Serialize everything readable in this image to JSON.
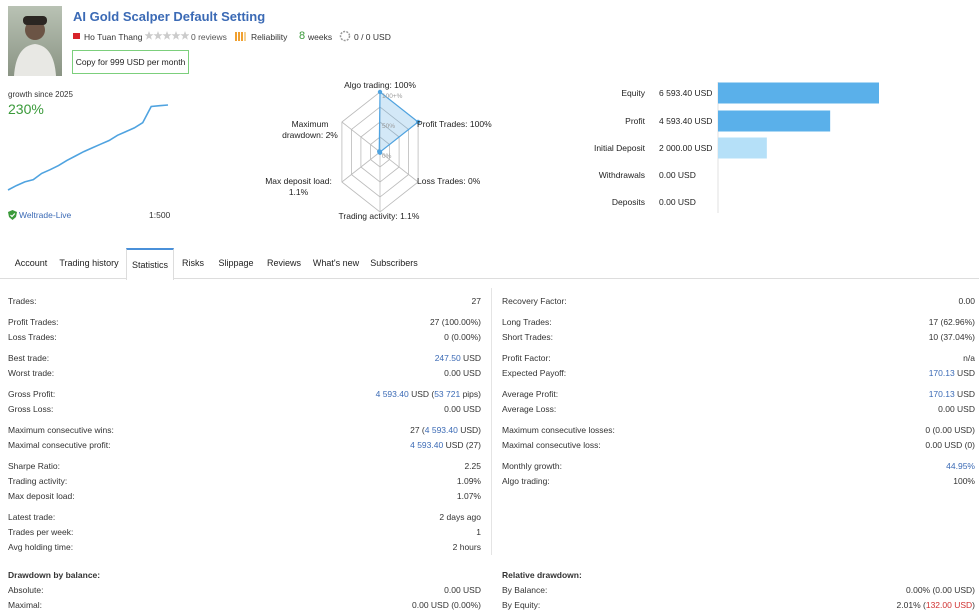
{
  "header": {
    "title": "AI Gold Scalper Default Setting",
    "author": "Ho Tuan Thang",
    "reviews": "0 reviews",
    "reliability": "Reliability",
    "duration": {
      "number": "8",
      "unit": "weeks"
    },
    "subscribers": "0 / 0 USD",
    "copy_button": "Copy for 999 USD per month"
  },
  "growth": {
    "label": "growth since 2025",
    "value": "230%",
    "broker": "Weltrade-Live",
    "leverage": "1:500"
  },
  "chart_data": [
    {
      "type": "line",
      "color": "#4fa3e0",
      "values": [
        0,
        12,
        22,
        28,
        45,
        55,
        66,
        80,
        92,
        104,
        114,
        124,
        134,
        148,
        158,
        168,
        182,
        226,
        228,
        230
      ]
    },
    {
      "type": "radar",
      "color": "#4fa3e0",
      "categories": [
        "Algo trading: 100%",
        "Profit Trades: 100%",
        "Loss Trades: 0%",
        "Trading activity: 1.1%",
        "Max deposit load: 1.1%",
        "Maximum drawdown: 2%"
      ],
      "values": [
        100,
        100,
        0,
        1.1,
        1.1,
        2
      ],
      "rlim": [
        0,
        100
      ],
      "rticks": [
        {
          "value": 100,
          "label": "100+%"
        },
        {
          "value": 50,
          "label": "50%"
        },
        {
          "value": 0,
          "label": "0%"
        }
      ]
    },
    {
      "type": "bar",
      "categories": [
        "Equity",
        "Profit",
        "Initial Deposit",
        "Withdrawals",
        "Deposits"
      ],
      "values": [
        6593.4,
        4593.4,
        2000,
        0,
        0
      ],
      "value_labels": [
        "6 593.40 USD",
        "4 593.40 USD",
        "2 000.00 USD",
        "0.00 USD",
        "0.00 USD"
      ],
      "colors": [
        "#5ab0ea",
        "#5ab0ea",
        "#b5e0f8",
        "#5ab0ea",
        "#5ab0ea"
      ]
    }
  ],
  "tabs": {
    "items": [
      "Account",
      "Trading history",
      "Statistics",
      "Risks",
      "Slippage",
      "Reviews",
      "What's new",
      "Subscribers"
    ],
    "active": 2
  },
  "statistics": {
    "left": [
      [
        {
          "label": "Trades:",
          "value": "27"
        }
      ],
      [
        {
          "label": "Profit Trades:",
          "value": "27 (100.00%)"
        },
        {
          "label": "Loss Trades:",
          "value": "0 (0.00%)"
        }
      ],
      [
        {
          "label": "Best trade:",
          "value": [
            {
              "text": "247.50",
              "highlight": "blue"
            },
            {
              "text": " USD"
            }
          ]
        },
        {
          "label": "Worst trade:",
          "value": "0.00 USD"
        }
      ],
      [
        {
          "label": "Gross Profit:",
          "value": [
            {
              "text": "4 593.40",
              "highlight": "blue"
            },
            {
              "text": " USD ("
            },
            {
              "text": "53 721",
              "highlight": "blue"
            },
            {
              "text": " pips)"
            }
          ]
        },
        {
          "label": "Gross Loss:",
          "value": "0.00 USD"
        }
      ],
      [
        {
          "label": "Maximum consecutive wins:",
          "value": [
            {
              "text": "27 ("
            },
            {
              "text": "4 593.40",
              "highlight": "blue"
            },
            {
              "text": " USD)"
            }
          ]
        },
        {
          "label": "Maximal consecutive profit:",
          "value": [
            {
              "text": "4 593.40",
              "highlight": "blue"
            },
            {
              "text": " USD (27)"
            }
          ]
        }
      ],
      [
        {
          "label": "Sharpe Ratio:",
          "value": "2.25"
        },
        {
          "label": "Trading activity:",
          "value": "1.09%"
        },
        {
          "label": "Max deposit load:",
          "value": "1.07%"
        }
      ],
      [
        {
          "label": "Latest trade:",
          "value": "2 days ago"
        },
        {
          "label": "Trades per week:",
          "value": "1"
        },
        {
          "label": "Avg holding time:",
          "value": "2 hours"
        }
      ]
    ],
    "right": [
      [
        {
          "label": "Recovery Factor:",
          "value": "0.00"
        }
      ],
      [
        {
          "label": "Long Trades:",
          "value": "17 (62.96%)"
        },
        {
          "label": "Short Trades:",
          "value": "10 (37.04%)"
        }
      ],
      [
        {
          "label": "Profit Factor:",
          "value": "n/a"
        },
        {
          "label": "Expected Payoff:",
          "value": [
            {
              "text": "170.13",
              "highlight": "blue"
            },
            {
              "text": " USD"
            }
          ]
        }
      ],
      [
        {
          "label": "Average Profit:",
          "value": [
            {
              "text": "170.13",
              "highlight": "blue"
            },
            {
              "text": " USD"
            }
          ]
        },
        {
          "label": "Average Loss:",
          "value": "0.00 USD"
        }
      ],
      [
        {
          "label": "Maximum consecutive losses:",
          "value": "0 (0.00 USD)"
        },
        {
          "label": "Maximal consecutive loss:",
          "value": "0.00 USD (0)"
        }
      ],
      [
        {
          "label": "Monthly growth:",
          "value": [
            {
              "text": "44.95%",
              "highlight": "blue"
            }
          ]
        },
        {
          "label": "Algo trading:",
          "value": "100%"
        }
      ]
    ]
  },
  "drawdown": {
    "left": {
      "title": "Drawdown by balance:",
      "rows": [
        {
          "label": "Absolute:",
          "value": "0.00 USD"
        },
        {
          "label": "Maximal:",
          "value": "0.00 USD (0.00%)"
        }
      ]
    },
    "right": {
      "title": "Relative drawdown:",
      "rows": [
        {
          "label": "By Balance:",
          "value": "0.00% (0.00 USD)"
        },
        {
          "label": "By Equity:",
          "value": [
            {
              "text": "2.01% ("
            },
            {
              "text": "132.00 USD",
              "highlight": "red"
            },
            {
              "text": ")"
            }
          ]
        }
      ]
    }
  }
}
